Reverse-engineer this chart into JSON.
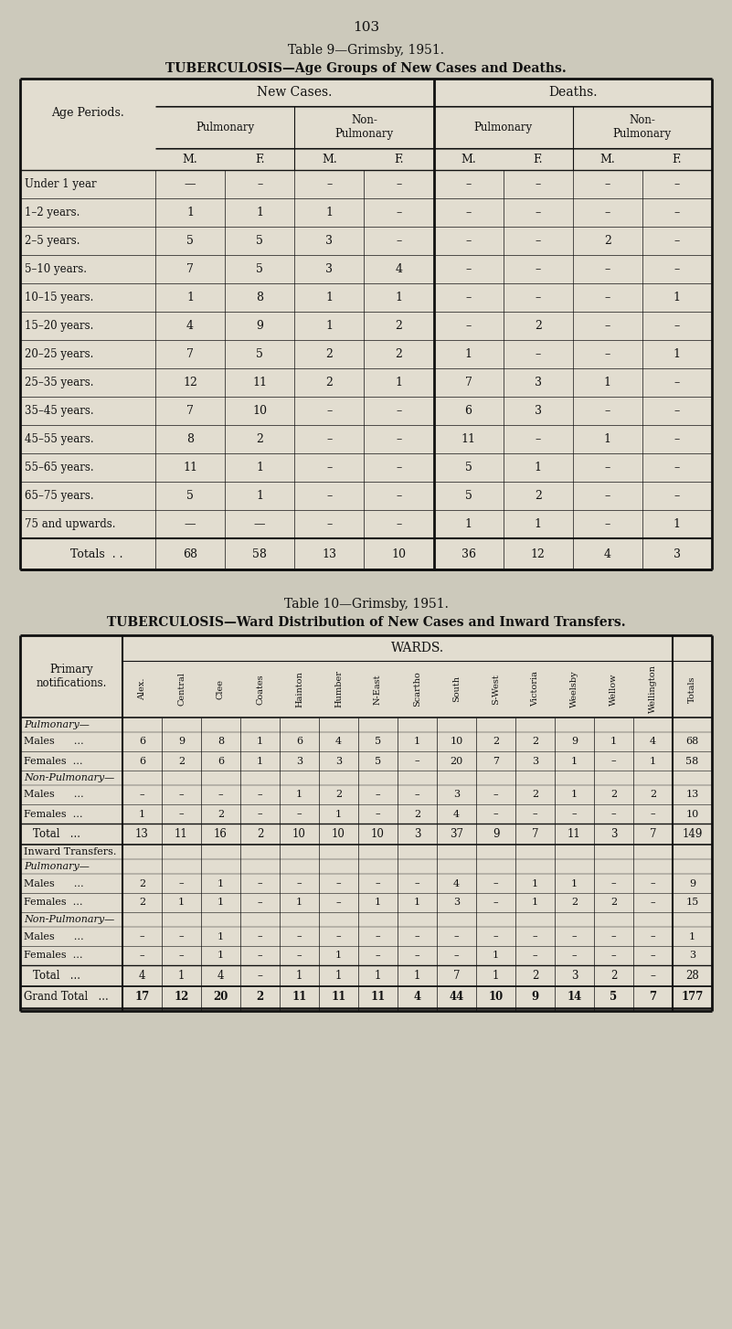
{
  "page_number": "103",
  "table9_title1": "Table 9—Grimsby, 1951.",
  "table9_title2": "TUBERCULOSIS—Age Groups of New Cases and Deaths.",
  "table9_col0_label": "Age Periods.",
  "table9_header_mf": [
    "M.",
    "F.",
    "M.",
    "F.",
    "M.",
    "F.",
    "M.",
    "F."
  ],
  "table9_rows": [
    [
      "Under 1 year",
      "—",
      "–",
      "–",
      "–",
      "–",
      "–",
      "–",
      "–"
    ],
    [
      "1–2 years.",
      "1",
      "1",
      "1",
      "–",
      "–",
      "–",
      "–",
      "–"
    ],
    [
      "2–5 years.",
      "5",
      "5",
      "3",
      "–",
      "–",
      "–",
      "2",
      "–"
    ],
    [
      "5–10 years.",
      "7",
      "5",
      "3",
      "4",
      "–",
      "–",
      "–",
      "–"
    ],
    [
      "10–15 years.",
      "1",
      "8",
      "1",
      "1",
      "–",
      "–",
      "–",
      "1"
    ],
    [
      "15–20 years.",
      "4",
      "9",
      "1",
      "2",
      "–",
      "2",
      "–",
      "–"
    ],
    [
      "20–25 years.",
      "7",
      "5",
      "2",
      "2",
      "1",
      "–",
      "–",
      "1"
    ],
    [
      "25–35 years.",
      "12",
      "11",
      "2",
      "1",
      "7",
      "3",
      "1",
      "–"
    ],
    [
      "35–45 years.",
      "7",
      "10",
      "–",
      "–",
      "6",
      "3",
      "–",
      "–"
    ],
    [
      "45–55 years.",
      "8",
      "2",
      "–",
      "–",
      "11",
      "–",
      "1",
      "–"
    ],
    [
      "55–65 years.",
      "11",
      "1",
      "–",
      "–",
      "5",
      "1",
      "–",
      "–"
    ],
    [
      "65–75 years.",
      "5",
      "1",
      "–",
      "–",
      "5",
      "2",
      "–",
      "–"
    ],
    [
      "75 and upwards.",
      "—",
      "—",
      "–",
      "–",
      "1",
      "1",
      "–",
      "1"
    ]
  ],
  "table9_totals": [
    "Totals",
    "68",
    "58",
    "13",
    "10",
    "36",
    "12",
    "4",
    "3"
  ],
  "table10_title1": "Table 10—Grimsby, 1951.",
  "table10_title2": "TUBERCULOSIS—Ward Distribution of New Cases and Inward Transfers.",
  "table10_wards": [
    "Alex.",
    "Central",
    "Clee",
    "Coates",
    "Hainton",
    "Humber",
    "N-East",
    "Scartho",
    "South",
    "S-West",
    "Victoria",
    "Weelsby",
    "Wellow",
    "Wellington",
    "Totals"
  ],
  "table10_col0_label": "Primary\nnotifications.",
  "t10_pul_label": "Pulmonary—",
  "t10_pul_rows": [
    [
      "Males      …",
      "6",
      "9",
      "8",
      "1",
      "6",
      "4",
      "5",
      "1",
      "10",
      "2",
      "2",
      "9",
      "1",
      "4",
      "68"
    ],
    [
      "Females  …",
      "6",
      "2",
      "6",
      "1",
      "3",
      "3",
      "5",
      "–",
      "20",
      "7",
      "3",
      "1",
      "–",
      "1",
      "58"
    ]
  ],
  "t10_nonpul_label": "Non-Pulmonary—",
  "t10_nonpul_rows": [
    [
      "Males      …",
      "–",
      "–",
      "–",
      "–",
      "1",
      "2",
      "–",
      "–",
      "3",
      "–",
      "2",
      "1",
      "2",
      "2",
      "13"
    ],
    [
      "Females  …",
      "1",
      "–",
      "2",
      "–",
      "–",
      "1",
      "–",
      "2",
      "4",
      "–",
      "–",
      "–",
      "–",
      "–",
      "10"
    ]
  ],
  "t10_primary_total": [
    "Total",
    "13",
    "11",
    "16",
    "2",
    "10",
    "10",
    "10",
    "3",
    "37",
    "9",
    "7",
    "11",
    "3",
    "7",
    "149"
  ],
  "t10_inward_label1": "Inward Transfers.",
  "t10_inward_label2": "Pulmonary—",
  "t10_inward_pul_rows": [
    [
      "Males      …",
      "2",
      "–",
      "1",
      "–",
      "–",
      "–",
      "–",
      "–",
      "4",
      "–",
      "1",
      "1",
      "–",
      "–",
      "9"
    ],
    [
      "Females  …",
      "2",
      "1",
      "1",
      "–",
      "1",
      "–",
      "1",
      "1",
      "3",
      "–",
      "1",
      "2",
      "2",
      "–",
      "15"
    ]
  ],
  "t10_inward_nonpul_label": "Non-Pulmonary—",
  "t10_inward_nonpul_rows": [
    [
      "Males      …",
      "–",
      "–",
      "1",
      "–",
      "–",
      "–",
      "–",
      "–",
      "–",
      "–",
      "–",
      "–",
      "–",
      "–",
      "1"
    ],
    [
      "Females  …",
      "–",
      "–",
      "1",
      "–",
      "–",
      "1",
      "–",
      "–",
      "–",
      "1",
      "–",
      "–",
      "–",
      "–",
      "3"
    ]
  ],
  "t10_inward_total": [
    "Total",
    "4",
    "1",
    "4",
    "–",
    "1",
    "1",
    "1",
    "1",
    "7",
    "1",
    "2",
    "3",
    "2",
    "–",
    "28"
  ],
  "t10_grand_total": [
    "Grand Total",
    "17",
    "12",
    "20",
    "2",
    "11",
    "11",
    "11",
    "4",
    "44",
    "10",
    "9",
    "14",
    "5",
    "7",
    "177"
  ],
  "bg_color": "#ccc9bb",
  "table_bg": "#e2ddd0",
  "text_color": "#111111",
  "line_color": "#111111"
}
